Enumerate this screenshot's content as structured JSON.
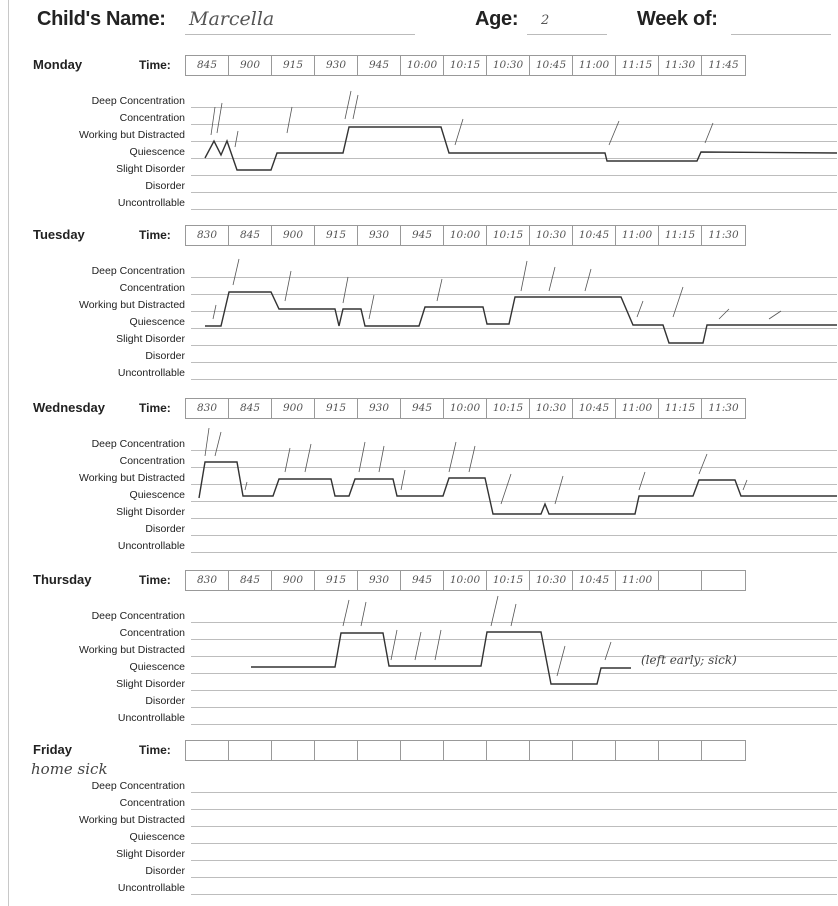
{
  "header": {
    "name_label": "Child's Name:",
    "name_value": "Marcella",
    "age_label": "Age:",
    "age_value": "2",
    "week_label": "Week of:",
    "week_value": ""
  },
  "levels": [
    "Deep Concentration",
    "Concentration",
    "Working but Distracted",
    "Quiescence",
    "Slight Disorder",
    "Disorder",
    "Uncontrollable"
  ],
  "time_label": "Time:",
  "days": [
    {
      "name": "Monday",
      "times": [
        "845",
        "900",
        "915",
        "930",
        "945",
        "10:00",
        "10:15",
        "10:30",
        "10:45",
        "11:00",
        "11:15",
        "11:30",
        "11:45"
      ],
      "note": ""
    },
    {
      "name": "Tuesday",
      "times": [
        "830",
        "845",
        "900",
        "915",
        "930",
        "945",
        "10:00",
        "10:15",
        "10:30",
        "10:45",
        "11:00",
        "11:15",
        "11:30"
      ],
      "note": ""
    },
    {
      "name": "Wednesday",
      "times": [
        "830",
        "845",
        "900",
        "915",
        "930",
        "945",
        "10:00",
        "10:15",
        "10:30",
        "10:45",
        "11:00",
        "11:15",
        "11:30"
      ],
      "note": ""
    },
    {
      "name": "Thursday",
      "times": [
        "830",
        "845",
        "900",
        "915",
        "930",
        "945",
        "10:00",
        "10:15",
        "10:30",
        "10:45",
        "11:00",
        "",
        ""
      ],
      "note": "(left early; sick)"
    },
    {
      "name": "Friday",
      "times": [
        "",
        "",
        "",
        "",
        "",
        "",
        "",
        "",
        "",
        "",
        "",
        "",
        ""
      ],
      "note": "home sick"
    }
  ],
  "colors": {
    "ink": "#333333",
    "grid": "#bdbdbd",
    "box": "#999999"
  }
}
